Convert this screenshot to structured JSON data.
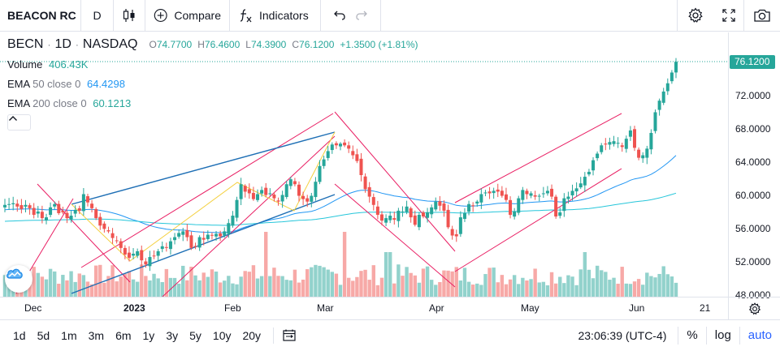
{
  "toolbar": {
    "symbol": "BEACON RC",
    "interval": "D",
    "compare_label": "Compare",
    "indicators_label": "Indicators"
  },
  "legend": {
    "ticker": "BECN",
    "interval": "1D",
    "exchange": "NASDAQ",
    "separator": "·",
    "open_key": "O",
    "open": "74.7700",
    "high_key": "H",
    "high": "76.4600",
    "low_key": "L",
    "low": "74.3900",
    "close_key": "C",
    "close": "76.1200",
    "change": "+1.3500 (+1.81%)"
  },
  "indicators": [
    {
      "name": "Volume",
      "params": "",
      "value": "406.43K"
    },
    {
      "name": "EMA",
      "params": "50 close 0",
      "value": "64.4298"
    },
    {
      "name": "EMA",
      "params": "200 close 0",
      "value": "60.1213"
    }
  ],
  "price_scale": {
    "current": "76.1200",
    "ticks": [
      "72.0000",
      "68.0000",
      "64.0000",
      "60.0000",
      "56.0000",
      "52.0000",
      "48.0000"
    ]
  },
  "time_axis": {
    "labels": [
      "Dec",
      "2023",
      "Feb",
      "Mar",
      "Apr",
      "May",
      "Jun",
      "21"
    ]
  },
  "bottom_bar": {
    "ranges": [
      "1d",
      "5d",
      "1m",
      "3m",
      "6m",
      "1y",
      "3y",
      "5y",
      "10y",
      "20y"
    ],
    "clock": "23:06:39 (UTC-4)",
    "percent": "%",
    "log": "log",
    "auto": "auto"
  },
  "colors": {
    "up": "#26a69a",
    "down": "#ef5350",
    "up_volume": "#92d2cc",
    "down_volume": "#f7a9a7",
    "ema50": "#2196f3",
    "ema200": "#26c6da",
    "drawing_pink": "#e91e63",
    "drawing_blue": "#1e6fb5",
    "drawing_yellow": "#f4d03f"
  },
  "icons": [
    "candles-icon",
    "plus-circle-icon",
    "fx-icon",
    "undo-icon",
    "redo-icon",
    "gear-icon",
    "fullscreen-icon",
    "camera-icon",
    "chevron-up-icon",
    "compare-date-range-icon",
    "logo-cloud-icon"
  ],
  "chart_data": {
    "type": "candlestick",
    "symbol": "BECN",
    "x_ticks": [
      "Dec",
      "2023",
      "Feb",
      "Mar",
      "Apr",
      "May",
      "Jun",
      "21"
    ],
    "ylim": [
      48,
      78
    ],
    "y_ticks": [
      48,
      52,
      56,
      60,
      64,
      68,
      72
    ],
    "last_price": 76.12,
    "closes": [
      58.8,
      58.9,
      59.0,
      58.6,
      58.3,
      58.8,
      58.4,
      57.6,
      58.0,
      57.2,
      57.3,
      58.5,
      58.9,
      57.8,
      57.9,
      57.2,
      57.5,
      58.2,
      58.1,
      60.1,
      59.1,
      58.4,
      57.2,
      56.3,
      55.9,
      55.6,
      54.8,
      54.5,
      53.6,
      52.8,
      52.4,
      52.9,
      53.2,
      52.1,
      51.6,
      52.5,
      52.6,
      53.2,
      53.8,
      53.7,
      54.4,
      54.9,
      55.4,
      55.6,
      54.9,
      53.6,
      53.8,
      54.9,
      54.6,
      55.2,
      55.1,
      55.3,
      55.0,
      55.6,
      56.6,
      57.5,
      59.4,
      61.3,
      60.4,
      60.2,
      59.5,
      60.1,
      60.6,
      60.0,
      60.2,
      59.6,
      59.2,
      60.0,
      61.3,
      61.9,
      61.3,
      59.9,
      59.5,
      59.2,
      59.9,
      61.6,
      63.5,
      64.3,
      65.3,
      66.1,
      66.0,
      66.2,
      66.0,
      65.6,
      64.8,
      64.1,
      62.4,
      60.7,
      59.8,
      58.8,
      57.6,
      56.9,
      57.2,
      57.5,
      57.0,
      58.1,
      58.0,
      58.6,
      57.3,
      56.4,
      57.6,
      57.4,
      57.9,
      58.5,
      59.2,
      58.7,
      58.1,
      56.1,
      55.1,
      55.0,
      57.3,
      57.8,
      58.9,
      58.7,
      59.2,
      60.1,
      60.3,
      60.2,
      60.5,
      60.4,
      59.9,
      59.4,
      57.6,
      58.0,
      59.6,
      60.6,
      60.1,
      60.2,
      59.8,
      59.9,
      60.2,
      60.5,
      59.8,
      57.4,
      57.9,
      59.6,
      59.8,
      60.5,
      60.8,
      61.4,
      62.2,
      62.8,
      64.2,
      65.0,
      66.0,
      66.1,
      66.4,
      66.5,
      66.3,
      65.8,
      66.8,
      67.8,
      65.7,
      64.5,
      64.8,
      65.6,
      67.5,
      70.0,
      71.4,
      72.5,
      73.5,
      74.8,
      76.1
    ],
    "series": [
      {
        "name": "EMA 50 close 0",
        "last": 64.4298
      },
      {
        "name": "EMA 200 close 0",
        "last": 60.1213
      }
    ],
    "volume_last": "406.43K"
  }
}
